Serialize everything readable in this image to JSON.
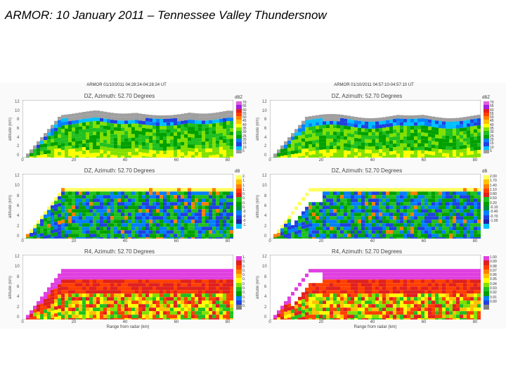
{
  "slide": {
    "title": "ARMOR:  10 January 2011 – Tennessee Valley Thundersnow"
  },
  "columns": [
    {
      "header": "ARMOR 01/10/2011 04:28:24-04:28:24 UT",
      "panels": [
        {
          "title": "DZ, Azimuth: 52.70 Degrees",
          "unit": "dBZ"
        },
        {
          "title": "DZ, Azimuth: 52.70 Degrees",
          "unit": "dB"
        },
        {
          "title": "R4, Azimuth: 52.70 Degrees",
          "unit": ""
        }
      ]
    },
    {
      "header": "ARMOR 01/10/2011 04:57:10-04:57:10 UT",
      "panels": [
        {
          "title": "DZ, Azimuth: 52.70 Degrees",
          "unit": "dBZ"
        },
        {
          "title": "DZ, Azimuth: 52.70 Degrees",
          "unit": "dB"
        },
        {
          "title": "R4, Azimuth: 52.70 Degrees",
          "unit": ""
        }
      ]
    }
  ],
  "axes": {
    "ylabel": "altitude (km)",
    "yticks": [
      "12",
      "10",
      "8",
      "6",
      "4",
      "2",
      "0"
    ],
    "xticks": [
      "0",
      "20",
      "40",
      "60",
      "80"
    ],
    "xlabel": "Range from radar (km)"
  },
  "colorbars": {
    "dz": {
      "labels": [
        "70",
        "65",
        "60",
        "55",
        "50",
        "45",
        "40",
        "35",
        "30",
        "25",
        "20",
        "15",
        "10",
        "5"
      ],
      "colors": [
        "#e060e0",
        "#a020e0",
        "#e02020",
        "#ff4000",
        "#ff8000",
        "#ffc000",
        "#ffff00",
        "#80e000",
        "#20c020",
        "#00a000",
        "#0080ff",
        "#2040e0",
        "#00c0ff",
        "#a0a0a0"
      ]
    },
    "zdr": {
      "labels": [
        "2.",
        "1.",
        "1.",
        "1.",
        "0.",
        "0.",
        "0.",
        "0.",
        "-0",
        "-0",
        "-0",
        "-1"
      ],
      "labels_right": [
        "2.00",
        "1.70",
        "1.40",
        "1.10",
        "0.80",
        "0.50",
        "0.20",
        "-0.10",
        "-0.40",
        "-0.70",
        "-1.00"
      ],
      "colors": [
        "#ffff60",
        "#ffc000",
        "#ff8000",
        "#ff4000",
        "#e02020",
        "#20c020",
        "#00a000",
        "#009040",
        "#0080ff",
        "#2040e0",
        "#2020a0",
        "#00c0ff"
      ]
    },
    "rho": {
      "labels": [
        "1.",
        "0.",
        "0.",
        "0.",
        "0.",
        "0.",
        "0.",
        "0.",
        "0.",
        "0.",
        "0.",
        "0."
      ],
      "labels_right": [
        "1.00",
        "0.99",
        "0.98",
        "0.97",
        "0.96",
        "0.95",
        "0.94",
        "0.93",
        "0.92",
        "0.91",
        "0.90"
      ],
      "colors": [
        "#e040e0",
        "#e02020",
        "#ff4000",
        "#ff8000",
        "#ffc000",
        "#ffff00",
        "#80e000",
        "#20c020",
        "#00a000",
        "#0080ff",
        "#2040e0",
        "#808080"
      ]
    }
  },
  "plot_colors": {
    "sky": "#ffffff",
    "dz_echo": [
      "#a0a0a0",
      "#00c0ff",
      "#2040e0",
      "#0080ff",
      "#20c020",
      "#00a000",
      "#80e000",
      "#ffff00"
    ],
    "zdr_echo": [
      "#ffff60",
      "#20c020",
      "#00a000",
      "#0080ff",
      "#2040e0",
      "#ff8000"
    ],
    "rho_echo": [
      "#e040e0",
      "#e02020",
      "#ff4000",
      "#ffc000",
      "#ffff00",
      "#80e000",
      "#20c020"
    ]
  }
}
